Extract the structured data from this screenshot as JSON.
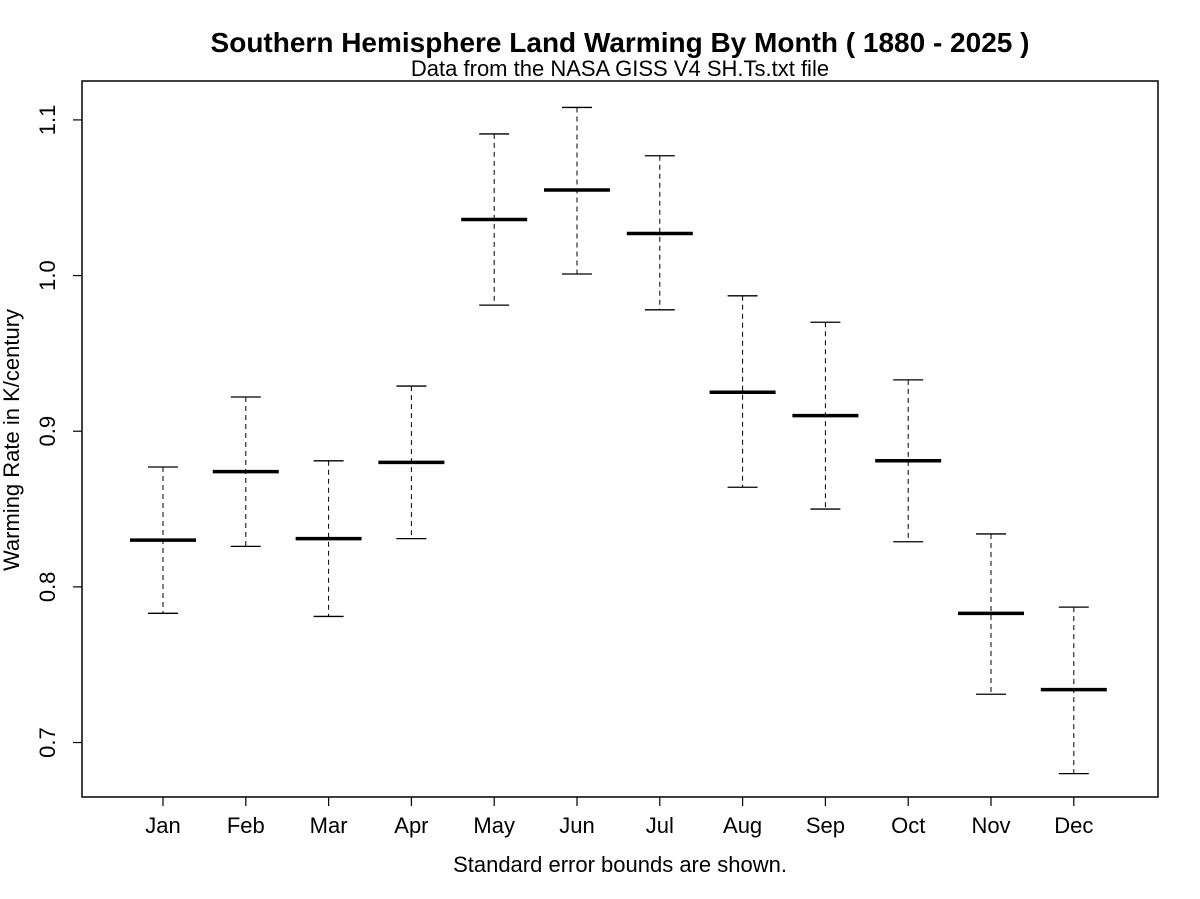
{
  "chart_data": {
    "type": "errorbar",
    "title": "Southern Hemisphere Land Warming By Month ( 1880 - 2025 )",
    "subtitle": "Data from the NASA GISS V4 SH.Ts.txt file",
    "xlabel": "Standard error bounds are shown.",
    "ylabel": "Warming Rate in K/century",
    "ylim": [
      0.665,
      1.125
    ],
    "yticks": [
      0.7,
      0.8,
      0.9,
      1.0,
      1.1
    ],
    "ytick_labels": [
      "0.7",
      "0.8",
      "0.9",
      "1.0",
      "1.1"
    ],
    "categories": [
      "Jan",
      "Feb",
      "Mar",
      "Apr",
      "May",
      "Jun",
      "Jul",
      "Aug",
      "Sep",
      "Oct",
      "Nov",
      "Dec"
    ],
    "values": [
      0.83,
      0.874,
      0.831,
      0.88,
      1.036,
      1.055,
      1.027,
      0.925,
      0.91,
      0.881,
      0.783,
      0.734
    ],
    "lower": [
      0.783,
      0.826,
      0.781,
      0.831,
      0.981,
      1.001,
      0.978,
      0.864,
      0.85,
      0.829,
      0.731,
      0.68
    ],
    "upper": [
      0.877,
      0.922,
      0.881,
      0.929,
      1.091,
      1.108,
      1.077,
      0.987,
      0.97,
      0.933,
      0.834,
      0.787
    ],
    "legend": "none",
    "grid": false
  }
}
